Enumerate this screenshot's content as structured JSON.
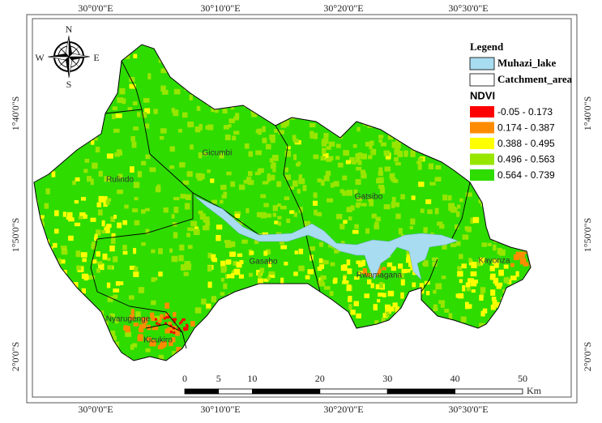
{
  "axes": {
    "top": [
      "30°0'0\"E",
      "30°10'0\"E",
      "30°20'0\"E",
      "30°30'0\"E"
    ],
    "bottom": [
      "30°0'0\"E",
      "30°10'0\"E",
      "30°20'0\"E",
      "30°30'0\"E"
    ],
    "left": [
      "1°40'0\"S",
      "1°50'0\"S",
      "2°0'0\"S"
    ],
    "right": [
      "1°40'0\"S",
      "1°50'0\"S",
      "2°0'0\"S"
    ]
  },
  "compass": {
    "n": "N",
    "e": "E",
    "s": "S",
    "w": "W"
  },
  "legend": {
    "title": "Legend",
    "layers": [
      {
        "label": "Muhazi_lake",
        "color": "#a8dcf0"
      },
      {
        "label": "Catchment_area",
        "color": "#ffffff"
      }
    ],
    "ndvi_title": "NDVI",
    "classes": [
      {
        "label": "-0.05 - 0.173",
        "color": "#ff0000"
      },
      {
        "label": "0.174 - 0.387",
        "color": "#ff8c00"
      },
      {
        "label": "0.388 - 0.495",
        "color": "#ffff00"
      },
      {
        "label": "0.496 - 0.563",
        "color": "#98e600"
      },
      {
        "label": "0.564 - 0.739",
        "color": "#2edc00"
      }
    ]
  },
  "districts": [
    "Rulindo",
    "Gicumbi",
    "Gatsibo",
    "Gasabo",
    "Rwamagana",
    "Kayonza",
    "Nyarugenge",
    "Kicukiro"
  ],
  "scale_bar": {
    "ticks": [
      0,
      5,
      10,
      20,
      30,
      40,
      50
    ],
    "unit": "Km"
  }
}
